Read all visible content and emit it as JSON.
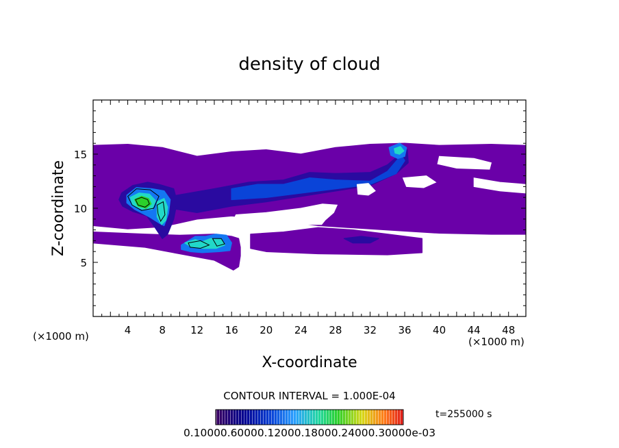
{
  "chart_data": {
    "type": "heatmap",
    "title": "density of cloud",
    "xlabel": "X-coordinate",
    "ylabel": "Z-coordinate",
    "x_unit": "(×1000 m)",
    "y_unit": "(×1000 m)",
    "xlim": [
      0,
      50
    ],
    "ylim": [
      0,
      20
    ],
    "x_ticks": [
      "4",
      "8",
      "12",
      "16",
      "20",
      "24",
      "28",
      "32",
      "36",
      "40",
      "44",
      "48"
    ],
    "y_ticks": [
      "5",
      "10",
      "15"
    ],
    "contour_interval": "CONTOUR INTERVAL = 1.000E-04",
    "time_label": "t=255000 s",
    "colorbar_labels": "0.10000.60000.12000.18000.24000.30000e-03",
    "colormap": [
      "#3b0060",
      "#000090",
      "#0a44d8",
      "#2aa0ff",
      "#22d8a0",
      "#2bd02b",
      "#d8d818",
      "#ff7a1a",
      "#e01818"
    ],
    "regions": [
      {
        "name": "upper-cloud-sheet",
        "level": 0.05,
        "color": "#6a00a8",
        "points": [
          [
            0,
            15.8
          ],
          [
            4,
            15.9
          ],
          [
            8,
            15.6
          ],
          [
            12,
            14.8
          ],
          [
            16,
            15.2
          ],
          [
            20,
            15.4
          ],
          [
            24,
            15.0
          ],
          [
            28,
            15.6
          ],
          [
            32,
            15.9
          ],
          [
            36,
            16.0
          ],
          [
            40,
            15.8
          ],
          [
            46,
            15.9
          ],
          [
            50,
            15.8
          ],
          [
            50,
            7.6
          ],
          [
            46,
            7.6
          ],
          [
            40,
            7.7
          ],
          [
            34,
            8.0
          ],
          [
            26,
            8.4
          ],
          [
            20,
            9.0
          ],
          [
            16,
            9.3
          ],
          [
            12,
            9.0
          ],
          [
            8,
            8.3
          ],
          [
            4,
            8.1
          ],
          [
            0,
            8.4
          ]
        ]
      },
      {
        "name": "lower-cloud-layer",
        "level": 0.05,
        "color": "#6a00a8",
        "points": [
          [
            0,
            7.8
          ],
          [
            6,
            7.6
          ],
          [
            10,
            7.5
          ],
          [
            14,
            7.6
          ],
          [
            16,
            7.4
          ],
          [
            16.8,
            7.2
          ],
          [
            17,
            6.4
          ],
          [
            17,
            5.6
          ],
          [
            16.8,
            4.6
          ],
          [
            16.2,
            4.3
          ],
          [
            14,
            5.2
          ],
          [
            10,
            5.8
          ],
          [
            6,
            6.4
          ],
          [
            0,
            6.8
          ]
        ]
      },
      {
        "name": "mid-layer-band",
        "level": 0.05,
        "color": "#6a00a8",
        "points": [
          [
            18.2,
            7.6
          ],
          [
            22,
            7.8
          ],
          [
            26,
            8.2
          ],
          [
            30,
            8.0
          ],
          [
            34,
            7.6
          ],
          [
            38,
            7.2
          ],
          [
            38,
            5.9
          ],
          [
            34,
            5.7
          ],
          [
            26,
            5.8
          ],
          [
            20,
            6.0
          ],
          [
            18.2,
            6.3
          ]
        ]
      },
      {
        "name": "diagonal-band-dark",
        "level": 0.2,
        "color": "#2a0aa0",
        "points": [
          [
            9,
            11.1
          ],
          [
            14,
            11.8
          ],
          [
            18,
            12.4
          ],
          [
            22,
            12.6
          ],
          [
            25,
            13.3
          ],
          [
            28,
            13.2
          ],
          [
            32,
            13.3
          ],
          [
            34,
            14.0
          ],
          [
            35.5,
            15.0
          ],
          [
            36.3,
            15.4
          ],
          [
            36.4,
            14.2
          ],
          [
            35,
            13.2
          ],
          [
            32,
            12.1
          ],
          [
            28,
            11.6
          ],
          [
            24,
            11.1
          ],
          [
            20,
            10.6
          ],
          [
            16,
            10.2
          ],
          [
            12,
            9.6
          ],
          [
            9,
            10.0
          ]
        ]
      },
      {
        "name": "diagonal-band-blue",
        "level": 0.3,
        "color": "#0a44d8",
        "points": [
          [
            16,
            11.8
          ],
          [
            19,
            12.2
          ],
          [
            22,
            12.2
          ],
          [
            25,
            12.8
          ],
          [
            28,
            12.6
          ],
          [
            32,
            12.5
          ],
          [
            34,
            13.4
          ],
          [
            35.6,
            14.9
          ],
          [
            36,
            14.4
          ],
          [
            35,
            13.2
          ],
          [
            32,
            12.2
          ],
          [
            28,
            11.8
          ],
          [
            24,
            11.4
          ],
          [
            20,
            11.0
          ],
          [
            16,
            10.8
          ]
        ]
      },
      {
        "name": "left-core-outer",
        "level": 0.2,
        "color": "#2a0aa0",
        "points": [
          [
            3.3,
            11.4
          ],
          [
            4.6,
            12.1
          ],
          [
            6.3,
            12.4
          ],
          [
            7.6,
            12.2
          ],
          [
            9.3,
            11.8
          ],
          [
            9.7,
            10.6
          ],
          [
            9.3,
            9.0
          ],
          [
            8.6,
            7.6
          ],
          [
            8.0,
            7.2
          ],
          [
            7.1,
            8.3
          ],
          [
            6.2,
            9.3
          ],
          [
            4.6,
            9.7
          ],
          [
            3.4,
            10.2
          ],
          [
            3.0,
            10.8
          ]
        ]
      },
      {
        "name": "left-core-blue",
        "level": 0.4,
        "color": "#1477f2",
        "points": [
          [
            3.9,
            11.2
          ],
          [
            5.0,
            11.9
          ],
          [
            6.8,
            11.8
          ],
          [
            8.2,
            11.6
          ],
          [
            8.9,
            10.8
          ],
          [
            8.7,
            9.5
          ],
          [
            8.2,
            8.4
          ],
          [
            7.7,
            8.6
          ],
          [
            6.5,
            9.2
          ],
          [
            4.8,
            9.9
          ],
          [
            3.9,
            10.5
          ]
        ]
      },
      {
        "name": "left-core-cyan",
        "level": 0.6,
        "color": "#22d8c8",
        "points": [
          [
            4.3,
            11.0
          ],
          [
            5.3,
            11.4
          ],
          [
            6.5,
            11.3
          ],
          [
            7.2,
            10.7
          ],
          [
            6.8,
            9.9
          ],
          [
            5.7,
            9.9
          ],
          [
            4.6,
            10.3
          ]
        ]
      },
      {
        "name": "left-core-green",
        "level": 1.0,
        "color": "#2bd02b",
        "points": [
          [
            4.8,
            10.8
          ],
          [
            5.6,
            11.1
          ],
          [
            6.4,
            10.9
          ],
          [
            6.7,
            10.4
          ],
          [
            6.1,
            10.0
          ],
          [
            5.2,
            10.2
          ]
        ]
      },
      {
        "name": "right-lobe-cyan",
        "level": 0.6,
        "color": "#22d8c8",
        "points": [
          [
            7.4,
            10.6
          ],
          [
            8.2,
            10.9
          ],
          [
            8.6,
            10.1
          ],
          [
            8.4,
            8.9
          ],
          [
            7.9,
            8.5
          ],
          [
            7.4,
            9.2
          ]
        ]
      },
      {
        "name": "lower-core-blue",
        "level": 0.4,
        "color": "#1477f2",
        "points": [
          [
            10.2,
            6.6
          ],
          [
            11.8,
            7.4
          ],
          [
            13.0,
            7.4
          ],
          [
            14.2,
            7.6
          ],
          [
            15.4,
            7.5
          ],
          [
            16.0,
            6.8
          ],
          [
            15.8,
            6.1
          ],
          [
            14.6,
            6.0
          ],
          [
            12.6,
            5.9
          ],
          [
            11.2,
            6.0
          ],
          [
            10.2,
            6.2
          ]
        ]
      },
      {
        "name": "lower-core-cyan",
        "level": 0.6,
        "color": "#22d8c8",
        "points": [
          [
            10.6,
            6.8
          ],
          [
            11.8,
            7.1
          ],
          [
            12.6,
            6.9
          ],
          [
            13.6,
            7.2
          ],
          [
            14.8,
            7.1
          ],
          [
            15.2,
            6.6
          ],
          [
            14.2,
            6.3
          ],
          [
            12.8,
            6.3
          ],
          [
            11.4,
            6.4
          ]
        ]
      },
      {
        "name": "top-right-core-blue",
        "level": 0.4,
        "color": "#1477f2",
        "points": [
          [
            34.2,
            15.6
          ],
          [
            35.4,
            16.0
          ],
          [
            36.2,
            15.6
          ],
          [
            36.0,
            14.8
          ],
          [
            35.2,
            14.6
          ],
          [
            34.4,
            14.9
          ]
        ]
      },
      {
        "name": "top-right-core-cyan",
        "level": 0.6,
        "color": "#22d8c8",
        "points": [
          [
            34.8,
            15.5
          ],
          [
            35.5,
            15.7
          ],
          [
            35.9,
            15.3
          ],
          [
            35.4,
            15.0
          ],
          [
            34.9,
            15.1
          ]
        ]
      },
      {
        "name": "right-small-band",
        "level": 0.2,
        "color": "#2a0aa0",
        "points": [
          [
            29,
            7.2
          ],
          [
            31,
            7.4
          ],
          [
            33,
            7.2
          ],
          [
            32,
            6.8
          ],
          [
            30,
            6.8
          ]
        ]
      }
    ],
    "holes": [
      {
        "name": "central-gap",
        "points": [
          [
            16.5,
            9.4
          ],
          [
            20,
            9.6
          ],
          [
            24,
            10.0
          ],
          [
            26.5,
            10.4
          ],
          [
            28.2,
            10.3
          ],
          [
            27.8,
            9.6
          ],
          [
            26.8,
            8.9
          ],
          [
            26.4,
            8.5
          ],
          [
            25.0,
            8.5
          ],
          [
            22,
            8.3
          ],
          [
            19.2,
            8.2
          ],
          [
            16.8,
            8.4
          ],
          [
            16.2,
            8.9
          ]
        ]
      },
      {
        "name": "gap-under-band",
        "points": [
          [
            30.5,
            12.2
          ],
          [
            31.8,
            12.3
          ],
          [
            32.6,
            11.6
          ],
          [
            31.8,
            11.2
          ],
          [
            30.6,
            11.3
          ]
        ]
      },
      {
        "name": "upper-right-gap",
        "points": [
          [
            40,
            14.8
          ],
          [
            44,
            14.6
          ],
          [
            46,
            14.2
          ],
          [
            45.8,
            13.6
          ],
          [
            42,
            13.7
          ],
          [
            39.8,
            14.1
          ]
        ]
      },
      {
        "name": "right-gap",
        "points": [
          [
            44,
            12.8
          ],
          [
            47,
            12.4
          ],
          [
            50,
            12.2
          ],
          [
            50,
            11.4
          ],
          [
            47,
            11.6
          ],
          [
            44,
            12.0
          ]
        ]
      },
      {
        "name": "center-right-gap",
        "points": [
          [
            35.8,
            12.8
          ],
          [
            38.5,
            13.0
          ],
          [
            39.6,
            12.4
          ],
          [
            38.2,
            11.9
          ],
          [
            36.2,
            12.0
          ]
        ]
      }
    ],
    "contours": [
      {
        "level": 0.2,
        "points": [
          [
            4.0,
            11.1
          ],
          [
            5.0,
            11.8
          ],
          [
            6.6,
            11.7
          ],
          [
            7.6,
            11.1
          ],
          [
            7.0,
            10.0
          ],
          [
            5.6,
            9.8
          ],
          [
            4.5,
            10.3
          ]
        ]
      },
      {
        "level": 1.0,
        "points": [
          [
            4.9,
            10.8
          ],
          [
            5.6,
            11.0
          ],
          [
            6.3,
            10.8
          ],
          [
            6.5,
            10.4
          ],
          [
            6.0,
            10.1
          ],
          [
            5.2,
            10.3
          ]
        ]
      },
      {
        "level": 0.4,
        "points": [
          [
            7.4,
            10.3
          ],
          [
            8.1,
            10.6
          ],
          [
            8.3,
            9.4
          ],
          [
            7.8,
            8.8
          ],
          [
            7.5,
            9.5
          ]
        ]
      },
      {
        "level": 0.4,
        "points": [
          [
            11.0,
            6.8
          ],
          [
            12.4,
            7.0
          ],
          [
            13.4,
            6.6
          ],
          [
            12.4,
            6.3
          ],
          [
            11.2,
            6.4
          ]
        ]
      },
      {
        "level": 0.4,
        "points": [
          [
            13.8,
            7.2
          ],
          [
            14.8,
            7.2
          ],
          [
            15.2,
            6.7
          ],
          [
            14.3,
            6.5
          ]
        ]
      }
    ]
  }
}
